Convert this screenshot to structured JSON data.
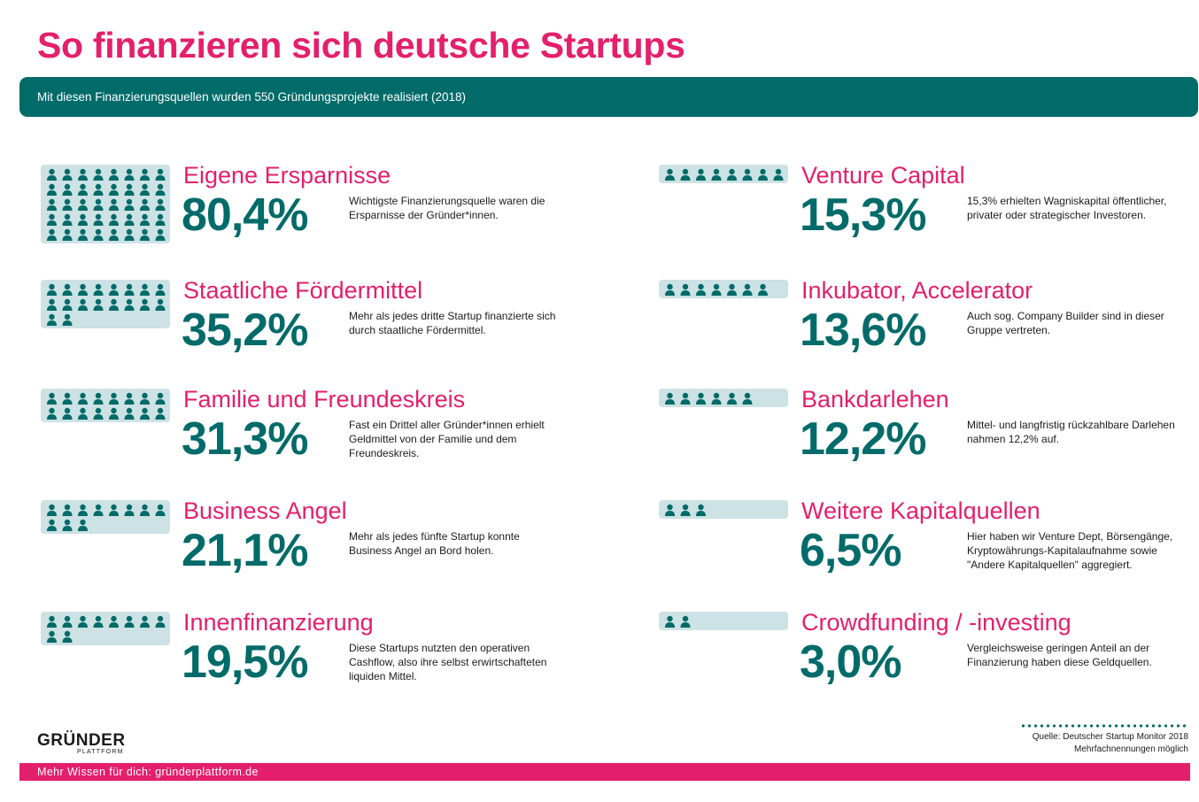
{
  "title": "So finanzieren sich deutsche Startups",
  "subtitle": "Mit diesen Finanzierungsquellen wurden  550 Gründungsprojekte realisiert (2018)",
  "chart_data": {
    "type": "bar",
    "categories": [
      "Eigene Ersparnisse",
      "Staatliche Fördermittel",
      "Familie und Freundeskreis",
      "Business Angel",
      "Innenfinanzierung",
      "Venture Capital",
      "Inkubator, Accelerator",
      "Bankdarlehen",
      "Weitere Kapitalquellen",
      "Crowdfunding / -investing"
    ],
    "values": [
      80.4,
      35.2,
      31.3,
      21.1,
      19.5,
      15.3,
      13.6,
      12.2,
      6.5,
      3.0
    ],
    "unit": "%"
  },
  "items": [
    {
      "label": "Eigene Ersparnisse",
      "value": "80,4%",
      "icons": 40,
      "desc": "Wichtigste Finanzierungsquelle waren die Ersparnisse der Gründer*innen."
    },
    {
      "label": "Staatliche Fördermittel",
      "value": "35,2%",
      "icons": 18,
      "desc": "Mehr als jedes dritte Startup finanzierte sich durch staatliche Fördermittel."
    },
    {
      "label": "Familie und Freundeskreis",
      "value": "31,3%",
      "icons": 16,
      "desc": "Fast ein Drittel aller Gründer*innen erhielt Geldmittel von der Familie und dem Freundeskreis."
    },
    {
      "label": "Business Angel",
      "value": "21,1%",
      "icons": 11,
      "desc": "Mehr als jedes fünfte Startup konnte Business Angel an Bord holen."
    },
    {
      "label": "Innenfinanzierung",
      "value": "19,5%",
      "icons": 10,
      "desc": "Diese Startups nutzten den operativen Cashflow, also ihre selbst erwirtschafteten liquiden Mittel."
    },
    {
      "label": "Venture Capital",
      "value": "15,3%",
      "icons": 8,
      "desc": "15,3% erhielten Wagniskapital öffentlicher, privater oder strategischer Investoren."
    },
    {
      "label": "Inkubator, Accelerator",
      "value": "13,6%",
      "icons": 7,
      "desc": "Auch sog. Company Builder sind in dieser Gruppe vertreten."
    },
    {
      "label": "Bankdarlehen",
      "value": "12,2%",
      "icons": 6,
      "desc": "Mittel- und langfristig rückzahlbare Darlehen nahmen 12,2% auf."
    },
    {
      "label": "Weitere Kapitalquellen",
      "value": "6,5%",
      "icons": 3,
      "desc": "Hier haben wir Venture Dept, Börsengänge, Kryptowährungs-Kapitalaufnahme sowie \"Andere Kapitalquellen\" aggregiert."
    },
    {
      "label": "Crowdfunding / -investing",
      "value": "3,0%",
      "icons": 2,
      "desc": "Vergleichsweise geringen Anteil an der Finanzierung haben diese Geldquellen."
    }
  ],
  "logo": {
    "main": "GRÜNDER",
    "sub": "PLATTFORM"
  },
  "source": "Quelle: Deutscher Startup Monitor 2018",
  "note": "Mehrfachnennungen möglich",
  "footer": "Mehr Wissen für dich: gründerplattform.de",
  "colors": {
    "accent": "#e41f6b",
    "teal": "#006b69",
    "icon_bg": "#cde2e4"
  }
}
